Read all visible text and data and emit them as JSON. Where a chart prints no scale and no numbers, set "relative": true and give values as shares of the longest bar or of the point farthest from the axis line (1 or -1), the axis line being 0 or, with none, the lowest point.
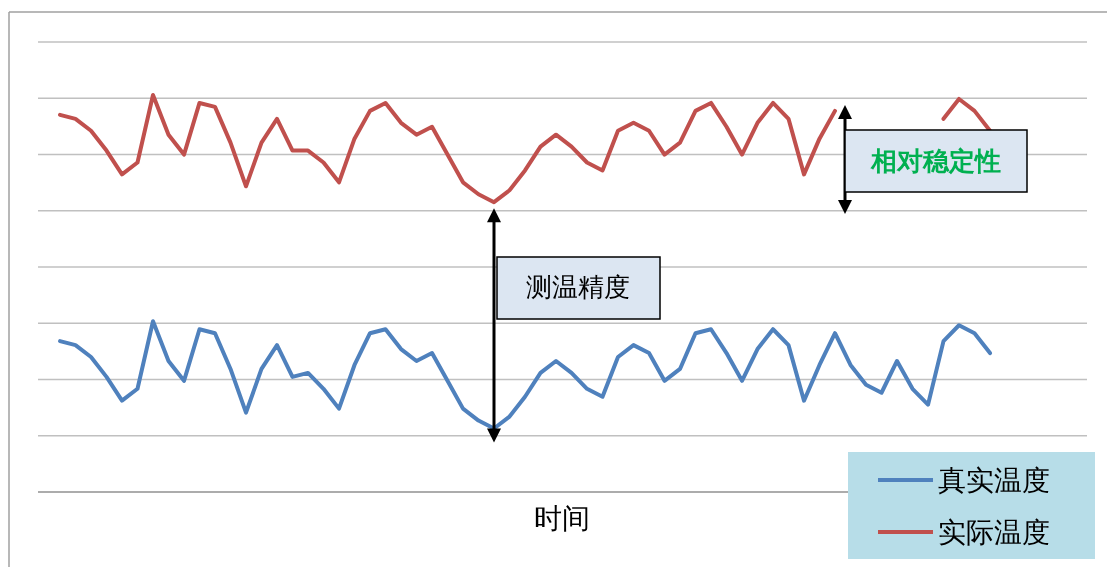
{
  "chart_data": {
    "type": "line",
    "relative": true,
    "xlabel": "时间",
    "grid": "y",
    "legend": "bottom right",
    "marker": "none",
    "line_style": "solid",
    "categories": [
      null,
      null,
      null,
      null,
      null,
      null,
      null,
      null,
      null,
      null,
      null,
      null,
      null,
      null,
      null,
      null,
      null,
      null,
      null,
      null,
      null,
      null,
      null,
      null,
      null,
      null,
      null,
      null,
      null,
      null,
      null,
      null,
      null,
      null,
      null,
      null,
      null,
      null,
      null,
      null,
      null,
      null,
      null,
      null,
      null,
      null,
      null,
      null,
      null,
      null,
      null,
      null,
      null,
      null,
      null,
      null,
      null,
      null,
      null,
      null,
      null
    ],
    "series": [
      {
        "name": "真实温度",
        "color": "#4f81bd",
        "values": [
          0.38,
          0.37,
          0.34,
          0.29,
          0.23,
          0.26,
          0.43,
          0.33,
          0.28,
          0.41,
          0.4,
          0.31,
          0.2,
          0.31,
          0.37,
          0.29,
          0.3,
          0.26,
          0.21,
          0.32,
          0.4,
          0.41,
          0.36,
          0.33,
          0.35,
          0.28,
          0.21,
          0.18,
          0.16,
          0.19,
          0.24,
          0.3,
          0.33,
          0.3,
          0.26,
          0.24,
          0.34,
          0.37,
          0.35,
          0.28,
          0.31,
          0.4,
          0.41,
          0.35,
          0.28,
          0.36,
          0.41,
          0.37,
          0.23,
          0.32,
          0.4,
          0.32,
          0.27,
          0.25,
          0.33,
          0.26,
          0.22,
          0.38,
          0.42,
          0.4,
          0.35
        ]
      },
      {
        "name": "实际温度",
        "color": "#c0504d",
        "values": [
          0.95,
          0.94,
          0.91,
          0.86,
          0.8,
          0.83,
          1.0,
          0.9,
          0.85,
          0.98,
          0.97,
          0.88,
          0.77,
          0.88,
          0.94,
          0.86,
          0.86,
          0.83,
          0.78,
          0.89,
          0.96,
          0.98,
          0.93,
          0.9,
          0.92,
          0.85,
          0.78,
          0.75,
          0.73,
          0.76,
          0.81,
          0.87,
          0.9,
          0.87,
          0.83,
          0.81,
          0.91,
          0.93,
          0.91,
          0.85,
          0.88,
          0.96,
          0.98,
          0.92,
          0.85,
          0.93,
          0.98,
          0.94,
          0.8,
          0.89,
          0.96,
          null,
          null,
          null,
          null,
          null,
          null,
          0.94,
          0.99,
          0.96,
          0.91
        ]
      }
    ],
    "annotations": [
      "测温精度",
      "相对稳定性"
    ]
  }
}
